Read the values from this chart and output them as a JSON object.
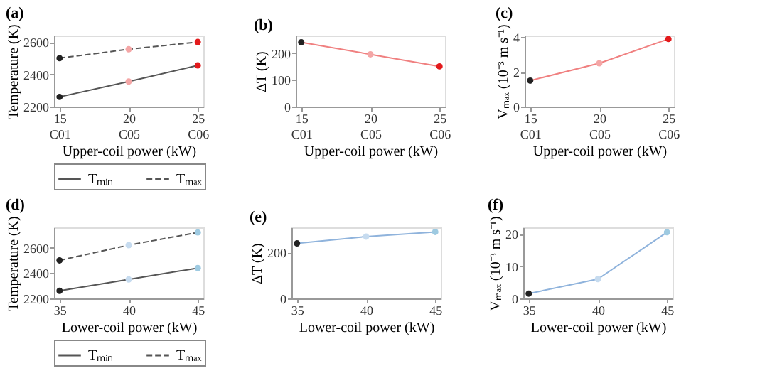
{
  "chart_data": [
    {
      "type": "line",
      "title": "(a)",
      "xlabel": "Upper-coil power (kW)",
      "ylabel": "Temperature (K)",
      "categories": [
        "15\nC01",
        "20\nC05",
        "25\nC06"
      ],
      "ylim": [
        2200,
        2640
      ],
      "yticks": [
        2200,
        2400,
        2600
      ],
      "legend": "bottom",
      "marker": "circle",
      "grid": false,
      "series": [
        {
          "name": "Tₘᵢₙ",
          "color": "#555555",
          "line_style": "solid",
          "colors": [
            "#222222",
            "#f4a6a6",
            "#e31a1c"
          ],
          "values": [
            2260,
            2355,
            2455
          ]
        },
        {
          "name": "Tₘₐₓ",
          "color": "#555555",
          "line_style": "dashed",
          "colors": [
            "#222222",
            "#f4a6a6",
            "#e31a1c"
          ],
          "values": [
            2500,
            2555,
            2600
          ]
        }
      ]
    },
    {
      "type": "line",
      "title": "(b)",
      "xlabel": "Upper-coil power (kW)",
      "ylabel": "ΔT (K)",
      "categories": [
        "15\nC01",
        "20\nC05",
        "25\nC06"
      ],
      "ylim": [
        0,
        265
      ],
      "yticks": [
        0,
        100,
        200
      ],
      "marker": "circle",
      "grid": false,
      "series": [
        {
          "color": "#f08080",
          "line_style": "solid",
          "colors": [
            "#222222",
            "#f4a6a6",
            "#e31a1c"
          ],
          "values": [
            240,
            195,
            150
          ]
        }
      ]
    },
    {
      "type": "line",
      "title": "(c)",
      "xlabel": "Upper-coil power (kW)",
      "ylabel": "Vₘₐₓ (10⁻³ m s⁻¹)",
      "categories": [
        "15\nC01",
        "20\nC05",
        "25\nC06"
      ],
      "ylim": [
        0,
        4.1
      ],
      "yticks": [
        0,
        2,
        4
      ],
      "marker": "circle",
      "grid": false,
      "series": [
        {
          "color": "#f08080",
          "line_style": "solid",
          "colors": [
            "#222222",
            "#f4a6a6",
            "#e31a1c"
          ],
          "values": [
            1.5,
            2.5,
            3.9
          ]
        }
      ]
    },
    {
      "type": "line",
      "title": "(d)",
      "xlabel": "Lower-coil power (kW)",
      "ylabel": "Temperature (K)",
      "x": [
        35,
        40,
        45
      ],
      "xlim": [
        34.6,
        45.4
      ],
      "xticks": [
        35,
        40,
        45
      ],
      "ylim": [
        2200,
        2760
      ],
      "yticks": [
        2200,
        2400,
        2600
      ],
      "legend": "bottom",
      "marker": "circle",
      "grid": false,
      "series": [
        {
          "name": "Tₘᵢₙ",
          "color": "#555555",
          "line_style": "solid",
          "colors": [
            "#222222",
            "#c6dbef",
            "#9ecae1"
          ],
          "values": [
            2260,
            2350,
            2440
          ]
        },
        {
          "name": "Tₘₐₓ",
          "color": "#555555",
          "line_style": "dashed",
          "colors": [
            "#222222",
            "#c6dbef",
            "#9ecae1"
          ],
          "values": [
            2500,
            2620,
            2720
          ]
        }
      ]
    },
    {
      "type": "line",
      "title": "(e)",
      "xlabel": "Lower-coil power (kW)",
      "ylabel": "ΔT (K)",
      "x": [
        35,
        40,
        45
      ],
      "xlim": [
        34.6,
        45.4
      ],
      "xticks": [
        35,
        40,
        45
      ],
      "ylim": [
        0,
        310
      ],
      "yticks": [
        0,
        200
      ],
      "marker": "circle",
      "grid": false,
      "series": [
        {
          "color": "#8fb3dc",
          "line_style": "solid",
          "colors": [
            "#222222",
            "#c6dbef",
            "#9ecae1"
          ],
          "values": [
            240,
            270,
            290
          ]
        }
      ]
    },
    {
      "type": "line",
      "title": "(f)",
      "xlabel": "Lower-coil power (kW)",
      "ylabel": "Vₘₐₓ (10⁻³ m s⁻¹)",
      "x": [
        35,
        40,
        45
      ],
      "xlim": [
        34.6,
        45.4
      ],
      "xticks": [
        35,
        40,
        45
      ],
      "ylim": [
        0,
        22
      ],
      "yticks": [
        0,
        10,
        20
      ],
      "marker": "circle",
      "grid": false,
      "series": [
        {
          "color": "#8fb3dc",
          "line_style": "solid",
          "colors": [
            "#222222",
            "#c6dbef",
            "#9ecae1"
          ],
          "values": [
            1.5,
            6,
            20.5
          ]
        }
      ]
    }
  ]
}
